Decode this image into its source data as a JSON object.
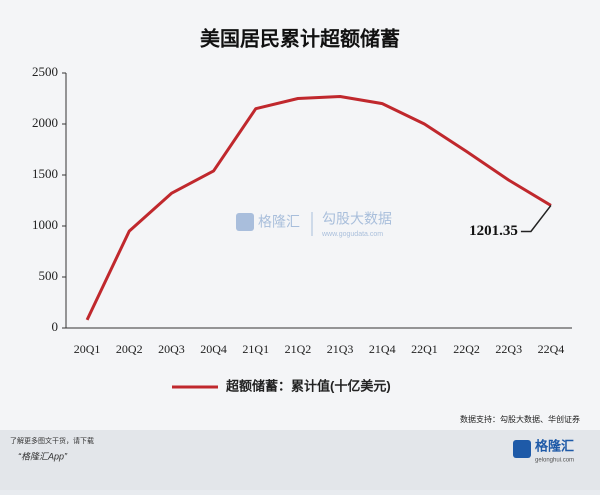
{
  "chart_data": {
    "type": "line",
    "title": "美国居民累计超额储蓄",
    "categories": [
      "20Q1",
      "20Q2",
      "20Q3",
      "20Q4",
      "21Q1",
      "21Q2",
      "21Q3",
      "21Q4",
      "22Q1",
      "22Q2",
      "22Q3",
      "22Q4"
    ],
    "series": [
      {
        "name": "超额储蓄：累计值(十亿美元)",
        "color": "#c0282d",
        "values": [
          80,
          950,
          1320,
          1540,
          2150,
          2250,
          2270,
          2200,
          2000,
          1730,
          1450,
          1201.35
        ],
        "value_labels": [
          null,
          null,
          null,
          null,
          null,
          null,
          null,
          null,
          null,
          null,
          null,
          "1201.35"
        ]
      }
    ],
    "ylim": [
      0,
      2500
    ],
    "yticks": [
      0,
      500,
      1000,
      1500,
      2000,
      2500
    ],
    "grid": false,
    "source": "数据支持：勾股大数据、华创证券"
  },
  "watermark": {
    "brand": "格隆汇",
    "partner": "勾股大数据",
    "url": "www.gogudata.com"
  },
  "footer": {
    "line1": "了解更多图文干货，请下载",
    "line2": "“格隆汇App”",
    "logo": "格隆汇",
    "logo_url": "gelonghui.com"
  }
}
